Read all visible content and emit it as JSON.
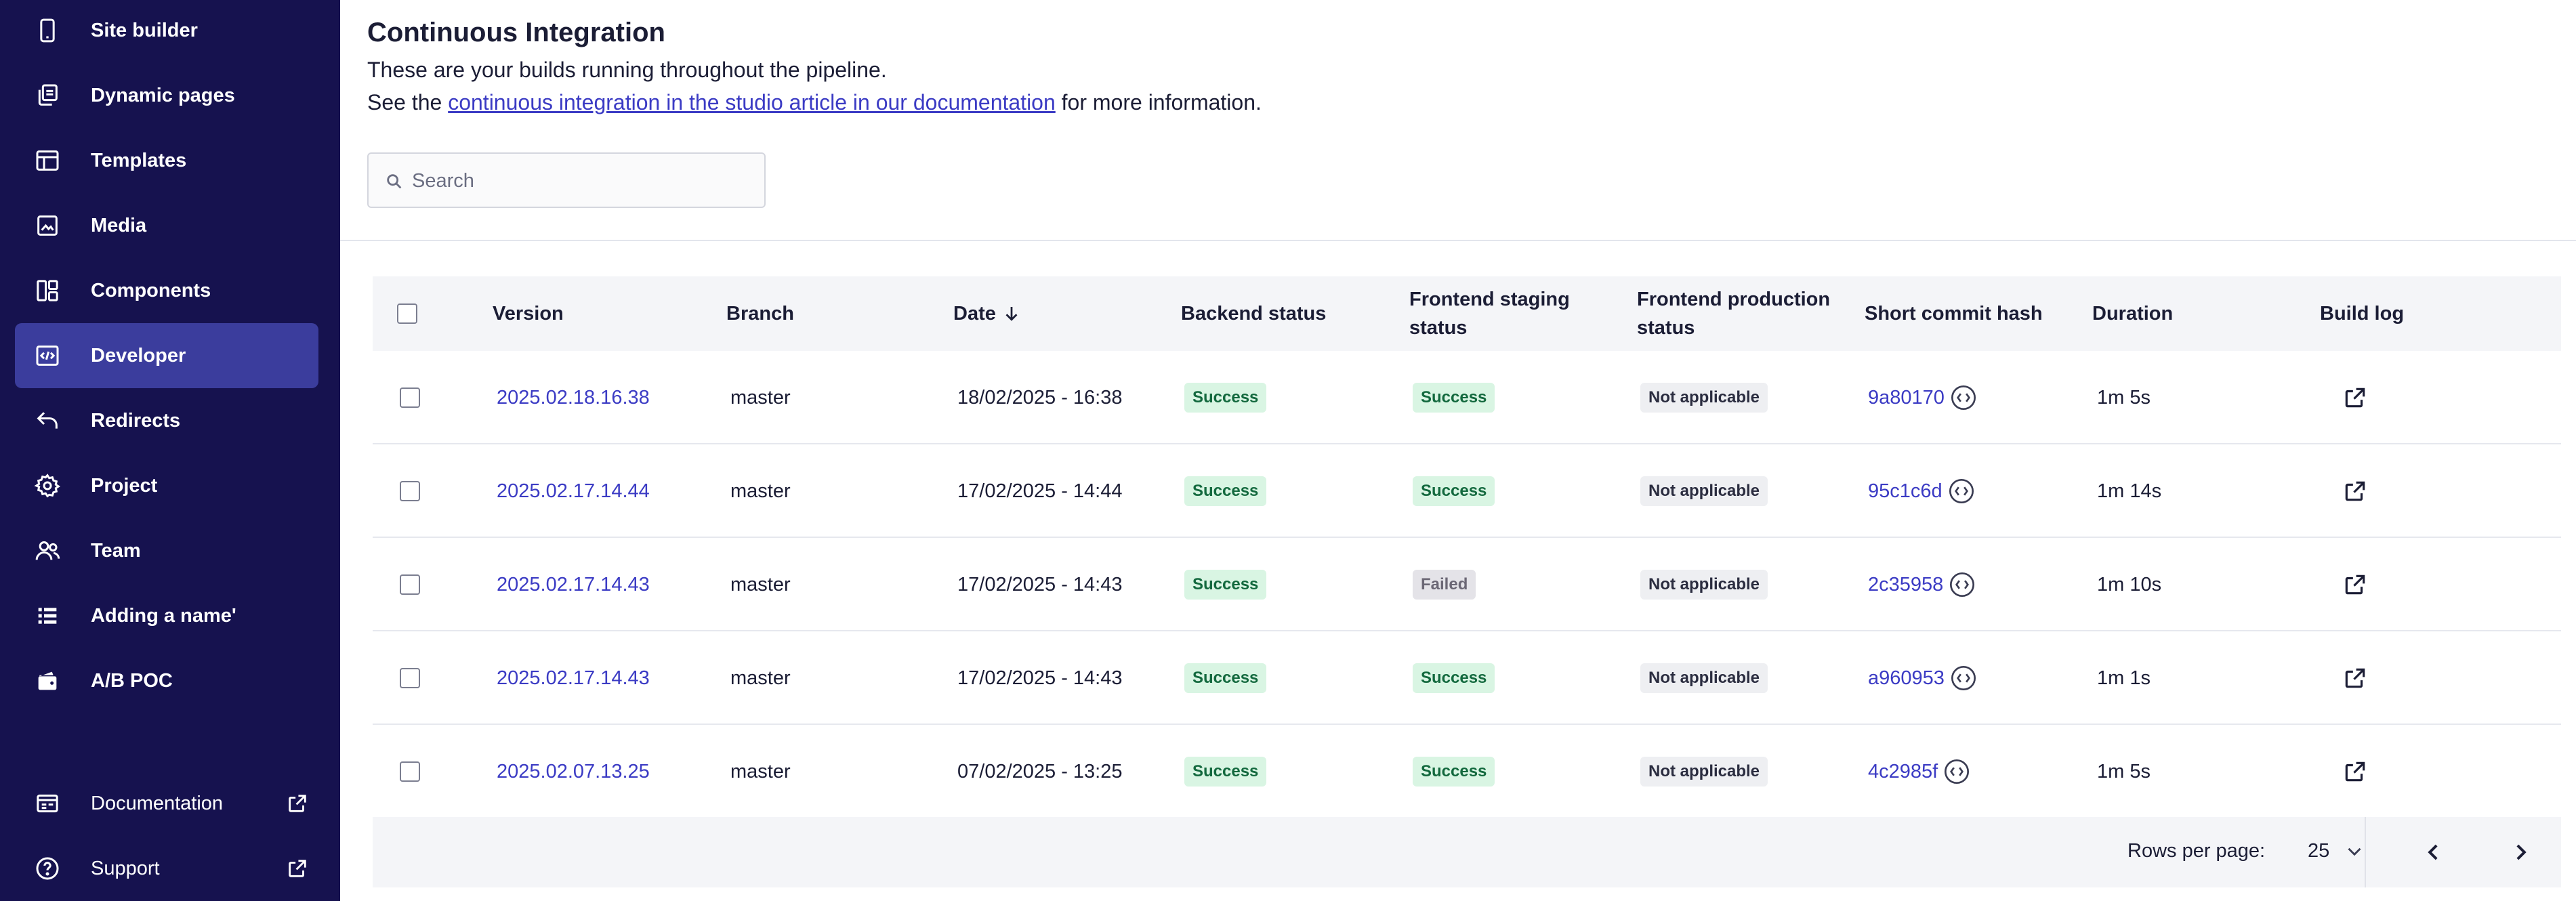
{
  "sidebar": {
    "items": [
      {
        "label": "Site builder",
        "icon": "mobile-icon"
      },
      {
        "label": "Dynamic pages",
        "icon": "copy-pages-icon"
      },
      {
        "label": "Templates",
        "icon": "template-layout-icon"
      },
      {
        "label": "Media",
        "icon": "image-icon"
      },
      {
        "label": "Components",
        "icon": "components-grid-icon"
      },
      {
        "label": "Developer",
        "icon": "code-icon"
      },
      {
        "label": "Redirects",
        "icon": "redirect-arrow-icon"
      },
      {
        "label": "Project",
        "icon": "gear-icon"
      },
      {
        "label": "Team",
        "icon": "users-icon"
      },
      {
        "label": "Adding a name'",
        "icon": "list-icon"
      },
      {
        "label": "A/B POC",
        "icon": "wallet-icon"
      }
    ],
    "active": "Developer",
    "footer": [
      {
        "label": "Documentation",
        "icon": "book-icon"
      },
      {
        "label": "Support",
        "icon": "help-icon"
      }
    ]
  },
  "main": {
    "title": "Continuous Integration",
    "description": "These are your builds running throughout the pipeline.",
    "see_prefix": "See the ",
    "see_link": "continuous integration in the studio article in our documentation",
    "see_suffix": " for more information.",
    "search": {
      "placeholder": "Search"
    }
  },
  "table": {
    "headers": {
      "version": "Version",
      "branch": "Branch",
      "date": "Date",
      "backend": "Backend status",
      "frontend_staging_1": "Frontend staging",
      "frontend_staging_2": "status",
      "frontend_production_1": "Frontend production",
      "frontend_production_2": "status",
      "commit": "Short commit hash",
      "duration": "Duration",
      "log": "Build log"
    },
    "sort": {
      "column": "Date",
      "direction": "descending"
    },
    "rows": [
      {
        "version": "2025.02.18.16.38",
        "branch": "master",
        "date": "18/02/2025 - 16:38",
        "backend": "Success",
        "frontend_staging": "Success",
        "frontend_production": "Not applicable",
        "commit": "9a80170",
        "duration": "1m 5s"
      },
      {
        "version": "2025.02.17.14.44",
        "branch": "master",
        "date": "17/02/2025 - 14:44",
        "backend": "Success",
        "frontend_staging": "Success",
        "frontend_production": "Not applicable",
        "commit": "95c1c6d",
        "duration": "1m 14s"
      },
      {
        "version": "2025.02.17.14.43",
        "branch": "master",
        "date": "17/02/2025 - 14:43",
        "backend": "Success",
        "frontend_staging": "Failed",
        "frontend_production": "Not applicable",
        "commit": "2c35958",
        "duration": "1m 10s"
      },
      {
        "version": "2025.02.17.14.43",
        "branch": "master",
        "date": "17/02/2025 - 14:43",
        "backend": "Success",
        "frontend_staging": "Success",
        "frontend_production": "Not applicable",
        "commit": "a960953",
        "duration": "1m 1s"
      },
      {
        "version": "2025.02.07.13.25",
        "branch": "master",
        "date": "07/02/2025 - 13:25",
        "backend": "Success",
        "frontend_staging": "Success",
        "frontend_production": "Not applicable",
        "commit": "4c2985f",
        "duration": "1m 5s"
      }
    ]
  },
  "pagination": {
    "rows_per_page_label": "Rows per page:",
    "rows_per_page_value": "25"
  },
  "colors": {
    "sidebar_bg": "#16124f",
    "sidebar_active": "#3b3d9d",
    "link": "#3b3bc4",
    "success_bg": "#d9f5e3",
    "success_text": "#13693e",
    "failed_bg": "#e4e3e8",
    "na_bg": "#eeeff2"
  }
}
